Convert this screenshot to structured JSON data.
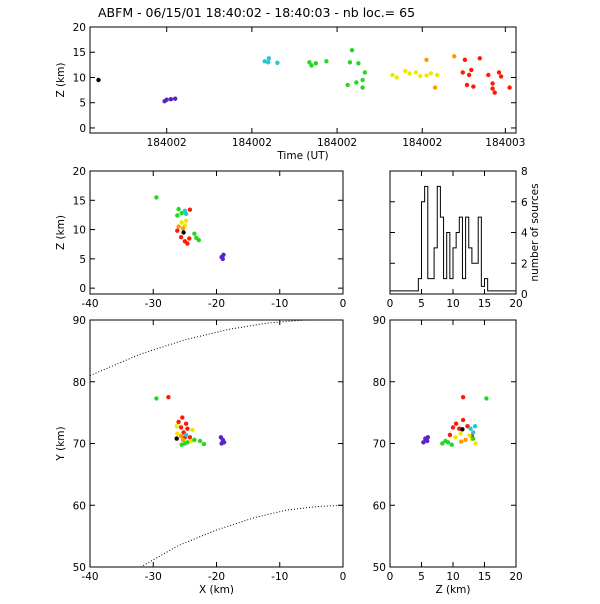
{
  "title": "ABFM - 06/15/01 18:40:02 - 18:40:03 - nb loc.=      65",
  "colors": {
    "black": "#000000",
    "purple": "#5b22c8",
    "cyan": "#22c8d8",
    "green": "#22d820",
    "yellow": "#f0e800",
    "orange": "#ff9a00",
    "red": "#ff1a00"
  },
  "chart_data": [
    {
      "id": "time-height",
      "type": "scatter",
      "xlabel": "Time (UT)",
      "ylabel": "Z (km)",
      "xlim": [
        0,
        1
      ],
      "ylim": [
        -1,
        20
      ],
      "yticks": [
        0,
        5,
        10,
        15,
        20
      ],
      "xticks": [
        {
          "x": 0.18,
          "label": "184002"
        },
        {
          "x": 0.38,
          "label": "184002"
        },
        {
          "x": 0.58,
          "label": "184002"
        },
        {
          "x": 0.78,
          "label": "184002"
        },
        {
          "x": 0.975,
          "label": "184003"
        }
      ],
      "points": [
        {
          "x": 0.02,
          "y": 9.5,
          "c": "black"
        },
        {
          "x": 0.175,
          "y": 5.3,
          "c": "purple"
        },
        {
          "x": 0.18,
          "y": 5.6,
          "c": "purple"
        },
        {
          "x": 0.19,
          "y": 5.7,
          "c": "purple"
        },
        {
          "x": 0.2,
          "y": 5.8,
          "c": "purple"
        },
        {
          "x": 0.41,
          "y": 13.2,
          "c": "cyan"
        },
        {
          "x": 0.418,
          "y": 13.0,
          "c": "cyan"
        },
        {
          "x": 0.42,
          "y": 13.8,
          "c": "cyan"
        },
        {
          "x": 0.44,
          "y": 12.9,
          "c": "cyan"
        },
        {
          "x": 0.515,
          "y": 13.0,
          "c": "green"
        },
        {
          "x": 0.52,
          "y": 12.4,
          "c": "green"
        },
        {
          "x": 0.53,
          "y": 12.8,
          "c": "green"
        },
        {
          "x": 0.555,
          "y": 13.2,
          "c": "green"
        },
        {
          "x": 0.615,
          "y": 15.4,
          "c": "green"
        },
        {
          "x": 0.61,
          "y": 13.0,
          "c": "green"
        },
        {
          "x": 0.63,
          "y": 12.8,
          "c": "green"
        },
        {
          "x": 0.645,
          "y": 11.0,
          "c": "green"
        },
        {
          "x": 0.605,
          "y": 8.5,
          "c": "green"
        },
        {
          "x": 0.625,
          "y": 9.0,
          "c": "green"
        },
        {
          "x": 0.64,
          "y": 8.0,
          "c": "green"
        },
        {
          "x": 0.64,
          "y": 9.5,
          "c": "green"
        },
        {
          "x": 0.71,
          "y": 10.5,
          "c": "yellow"
        },
        {
          "x": 0.72,
          "y": 10.0,
          "c": "yellow"
        },
        {
          "x": 0.74,
          "y": 11.3,
          "c": "yellow"
        },
        {
          "x": 0.75,
          "y": 10.8,
          "c": "yellow"
        },
        {
          "x": 0.765,
          "y": 11.0,
          "c": "yellow"
        },
        {
          "x": 0.775,
          "y": 10.3,
          "c": "yellow"
        },
        {
          "x": 0.79,
          "y": 10.4,
          "c": "yellow"
        },
        {
          "x": 0.8,
          "y": 10.8,
          "c": "yellow"
        },
        {
          "x": 0.815,
          "y": 10.5,
          "c": "yellow"
        },
        {
          "x": 0.79,
          "y": 13.5,
          "c": "orange"
        },
        {
          "x": 0.81,
          "y": 8.0,
          "c": "orange"
        },
        {
          "x": 0.855,
          "y": 14.2,
          "c": "orange"
        },
        {
          "x": 0.88,
          "y": 13.5,
          "c": "red"
        },
        {
          "x": 0.875,
          "y": 11.0,
          "c": "red"
        },
        {
          "x": 0.895,
          "y": 11.5,
          "c": "red"
        },
        {
          "x": 0.89,
          "y": 10.5,
          "c": "red"
        },
        {
          "x": 0.885,
          "y": 8.5,
          "c": "red"
        },
        {
          "x": 0.9,
          "y": 8.2,
          "c": "red"
        },
        {
          "x": 0.915,
          "y": 13.8,
          "c": "red"
        },
        {
          "x": 0.935,
          "y": 10.5,
          "c": "red"
        },
        {
          "x": 0.945,
          "y": 8.8,
          "c": "red"
        },
        {
          "x": 0.945,
          "y": 7.8,
          "c": "red"
        },
        {
          "x": 0.95,
          "y": 7.0,
          "c": "red"
        },
        {
          "x": 0.96,
          "y": 11.0,
          "c": "red"
        },
        {
          "x": 0.965,
          "y": 10.2,
          "c": "red"
        },
        {
          "x": 0.985,
          "y": 8.0,
          "c": "red"
        }
      ]
    },
    {
      "id": "xz",
      "type": "scatter",
      "xlabel": "",
      "ylabel": "Z (km)",
      "xlim": [
        -40,
        0
      ],
      "ylim": [
        -1,
        20
      ],
      "xticks": [
        -40,
        -30,
        -20,
        -10,
        0
      ],
      "yticks": [
        0,
        5,
        10,
        15,
        20
      ],
      "points": [
        {
          "x": -29.5,
          "y": 15.5,
          "c": "green"
        },
        {
          "x": -26,
          "y": 13.5,
          "c": "green"
        },
        {
          "x": -25.5,
          "y": 12.8,
          "c": "green"
        },
        {
          "x": -26.2,
          "y": 12.4,
          "c": "green"
        },
        {
          "x": -25,
          "y": 13.2,
          "c": "cyan"
        },
        {
          "x": -24.8,
          "y": 12.7,
          "c": "cyan"
        },
        {
          "x": -24.2,
          "y": 13.4,
          "c": "red"
        },
        {
          "x": -25.5,
          "y": 11.2,
          "c": "yellow"
        },
        {
          "x": -25,
          "y": 10.7,
          "c": "yellow"
        },
        {
          "x": -24.8,
          "y": 11.5,
          "c": "yellow"
        },
        {
          "x": -26,
          "y": 10.5,
          "c": "orange"
        },
        {
          "x": -25.3,
          "y": 10.2,
          "c": "orange"
        },
        {
          "x": -26.2,
          "y": 9.8,
          "c": "red"
        },
        {
          "x": -25.6,
          "y": 8.7,
          "c": "red"
        },
        {
          "x": -25,
          "y": 8.0,
          "c": "red"
        },
        {
          "x": -24.6,
          "y": 7.6,
          "c": "red"
        },
        {
          "x": -24.3,
          "y": 8.5,
          "c": "red"
        },
        {
          "x": -23.5,
          "y": 9.3,
          "c": "green"
        },
        {
          "x": -23.2,
          "y": 8.6,
          "c": "green"
        },
        {
          "x": -22.8,
          "y": 8.2,
          "c": "green"
        },
        {
          "x": -25.2,
          "y": 9.5,
          "c": "black"
        },
        {
          "x": -19.2,
          "y": 5.3,
          "c": "purple"
        },
        {
          "x": -18.9,
          "y": 5.7,
          "c": "purple"
        },
        {
          "x": -19,
          "y": 5.0,
          "c": "purple"
        }
      ]
    },
    {
      "id": "histogram",
      "type": "bar",
      "xlabel": "",
      "ylabel": "number of sources",
      "xlim": [
        0,
        20
      ],
      "ylim": [
        0,
        8
      ],
      "xticks": [
        0,
        5,
        10,
        15,
        20
      ],
      "yticks": [
        0,
        2,
        4,
        6,
        8
      ],
      "bin_edges": [
        0,
        1,
        2,
        3,
        4,
        4.5,
        5,
        5.5,
        6,
        6.5,
        7,
        7.5,
        8,
        8.5,
        9,
        9.5,
        10,
        10.5,
        11,
        11.5,
        12,
        12.5,
        13,
        13.5,
        14,
        14.5,
        15,
        15.5,
        16,
        20
      ],
      "values": [
        0.2,
        0.2,
        0.2,
        0.2,
        0.2,
        1.0,
        6.0,
        7.0,
        1.0,
        1.0,
        3.0,
        7.0,
        5.0,
        1.0,
        4.0,
        1.0,
        3.0,
        4.0,
        5.0,
        1.0,
        5.0,
        3.0,
        2.0,
        2.0,
        5.0,
        0.5,
        1.0,
        0.2,
        0.2
      ]
    },
    {
      "id": "xy",
      "type": "scatter",
      "xlabel": "X (km)",
      "ylabel": "Y (km)",
      "xlim": [
        -40,
        0
      ],
      "ylim": [
        50,
        90
      ],
      "xticks": [
        -40,
        -30,
        -20,
        -10,
        0
      ],
      "yticks": [
        50,
        60,
        70,
        80,
        90
      ],
      "curves": [
        {
          "x": [
            -40,
            -32,
            -25,
            -18,
            -12,
            -6,
            0
          ],
          "y": [
            81,
            84.5,
            86.8,
            88.5,
            89.5,
            90,
            90.2
          ]
        },
        {
          "x": [
            -32,
            -26,
            -20,
            -14,
            -9,
            -4,
            0
          ],
          "y": [
            50,
            53.5,
            56,
            58,
            59.2,
            59.8,
            60
          ]
        }
      ],
      "points": [
        {
          "x": -29.5,
          "y": 77.3,
          "c": "green"
        },
        {
          "x": -27.6,
          "y": 77.5,
          "c": "red"
        },
        {
          "x": -26.0,
          "y": 73.5,
          "c": "red"
        },
        {
          "x": -25.4,
          "y": 74.2,
          "c": "red"
        },
        {
          "x": -24.8,
          "y": 73.2,
          "c": "red"
        },
        {
          "x": -25.6,
          "y": 72.6,
          "c": "red"
        },
        {
          "x": -24.6,
          "y": 72.4,
          "c": "red"
        },
        {
          "x": -25.2,
          "y": 71.8,
          "c": "red"
        },
        {
          "x": -24.2,
          "y": 71.0,
          "c": "red"
        },
        {
          "x": -25.0,
          "y": 71.0,
          "c": "red"
        },
        {
          "x": -26.3,
          "y": 72.8,
          "c": "yellow"
        },
        {
          "x": -26.2,
          "y": 71.6,
          "c": "yellow"
        },
        {
          "x": -23.8,
          "y": 72.2,
          "c": "yellow"
        },
        {
          "x": -24.0,
          "y": 70.4,
          "c": "yellow"
        },
        {
          "x": -25.6,
          "y": 71.2,
          "c": "orange"
        },
        {
          "x": -25.3,
          "y": 70.6,
          "c": "orange"
        },
        {
          "x": -26.3,
          "y": 70.8,
          "c": "black"
        },
        {
          "x": -24.6,
          "y": 70.2,
          "c": "green"
        },
        {
          "x": -25.5,
          "y": 69.8,
          "c": "green"
        },
        {
          "x": -23.5,
          "y": 70.6,
          "c": "green"
        },
        {
          "x": -22.6,
          "y": 70.4,
          "c": "green"
        },
        {
          "x": -22.0,
          "y": 69.9,
          "c": "green"
        },
        {
          "x": -25.0,
          "y": 70.0,
          "c": "green"
        },
        {
          "x": -24.8,
          "y": 71.4,
          "c": "cyan"
        },
        {
          "x": -19.3,
          "y": 71.0,
          "c": "purple"
        },
        {
          "x": -19.0,
          "y": 70.6,
          "c": "purple"
        },
        {
          "x": -18.8,
          "y": 70.2,
          "c": "purple"
        },
        {
          "x": -19.2,
          "y": 70.0,
          "c": "purple"
        }
      ]
    },
    {
      "id": "zy",
      "type": "scatter",
      "xlabel": "Z (km)",
      "ylabel": "",
      "xlim": [
        0,
        20
      ],
      "ylim": [
        50,
        90
      ],
      "xticks": [
        0,
        5,
        10,
        15,
        20
      ],
      "yticks": [
        50,
        60,
        70,
        80,
        90
      ],
      "points": [
        {
          "x": 5.3,
          "y": 70.2,
          "c": "purple"
        },
        {
          "x": 5.6,
          "y": 70.8,
          "c": "purple"
        },
        {
          "x": 5.9,
          "y": 70.4,
          "c": "purple"
        },
        {
          "x": 6.0,
          "y": 71.0,
          "c": "purple"
        },
        {
          "x": 8.3,
          "y": 70.0,
          "c": "green"
        },
        {
          "x": 8.8,
          "y": 70.4,
          "c": "green"
        },
        {
          "x": 9.2,
          "y": 70.2,
          "c": "green"
        },
        {
          "x": 9.8,
          "y": 69.8,
          "c": "green"
        },
        {
          "x": 9.5,
          "y": 71.4,
          "c": "red"
        },
        {
          "x": 10.0,
          "y": 72.6,
          "c": "red"
        },
        {
          "x": 10.5,
          "y": 73.2,
          "c": "red"
        },
        {
          "x": 11.0,
          "y": 72.4,
          "c": "red"
        },
        {
          "x": 11.6,
          "y": 73.8,
          "c": "red"
        },
        {
          "x": 12.3,
          "y": 72.8,
          "c": "red"
        },
        {
          "x": 11.6,
          "y": 77.5,
          "c": "red"
        },
        {
          "x": 13.0,
          "y": 71.2,
          "c": "red"
        },
        {
          "x": 10.4,
          "y": 71.0,
          "c": "yellow"
        },
        {
          "x": 11.2,
          "y": 71.6,
          "c": "yellow"
        },
        {
          "x": 12.6,
          "y": 71.3,
          "c": "yellow"
        },
        {
          "x": 13.6,
          "y": 70.0,
          "c": "yellow"
        },
        {
          "x": 13.0,
          "y": 70.7,
          "c": "yellow"
        },
        {
          "x": 11.3,
          "y": 70.3,
          "c": "orange"
        },
        {
          "x": 12.0,
          "y": 70.6,
          "c": "orange"
        },
        {
          "x": 11.5,
          "y": 72.3,
          "c": "black"
        },
        {
          "x": 12.8,
          "y": 72.4,
          "c": "cyan"
        },
        {
          "x": 13.2,
          "y": 71.8,
          "c": "cyan"
        },
        {
          "x": 13.5,
          "y": 72.8,
          "c": "cyan"
        },
        {
          "x": 13.2,
          "y": 70.8,
          "c": "green"
        },
        {
          "x": 15.3,
          "y": 77.3,
          "c": "green"
        }
      ]
    }
  ]
}
